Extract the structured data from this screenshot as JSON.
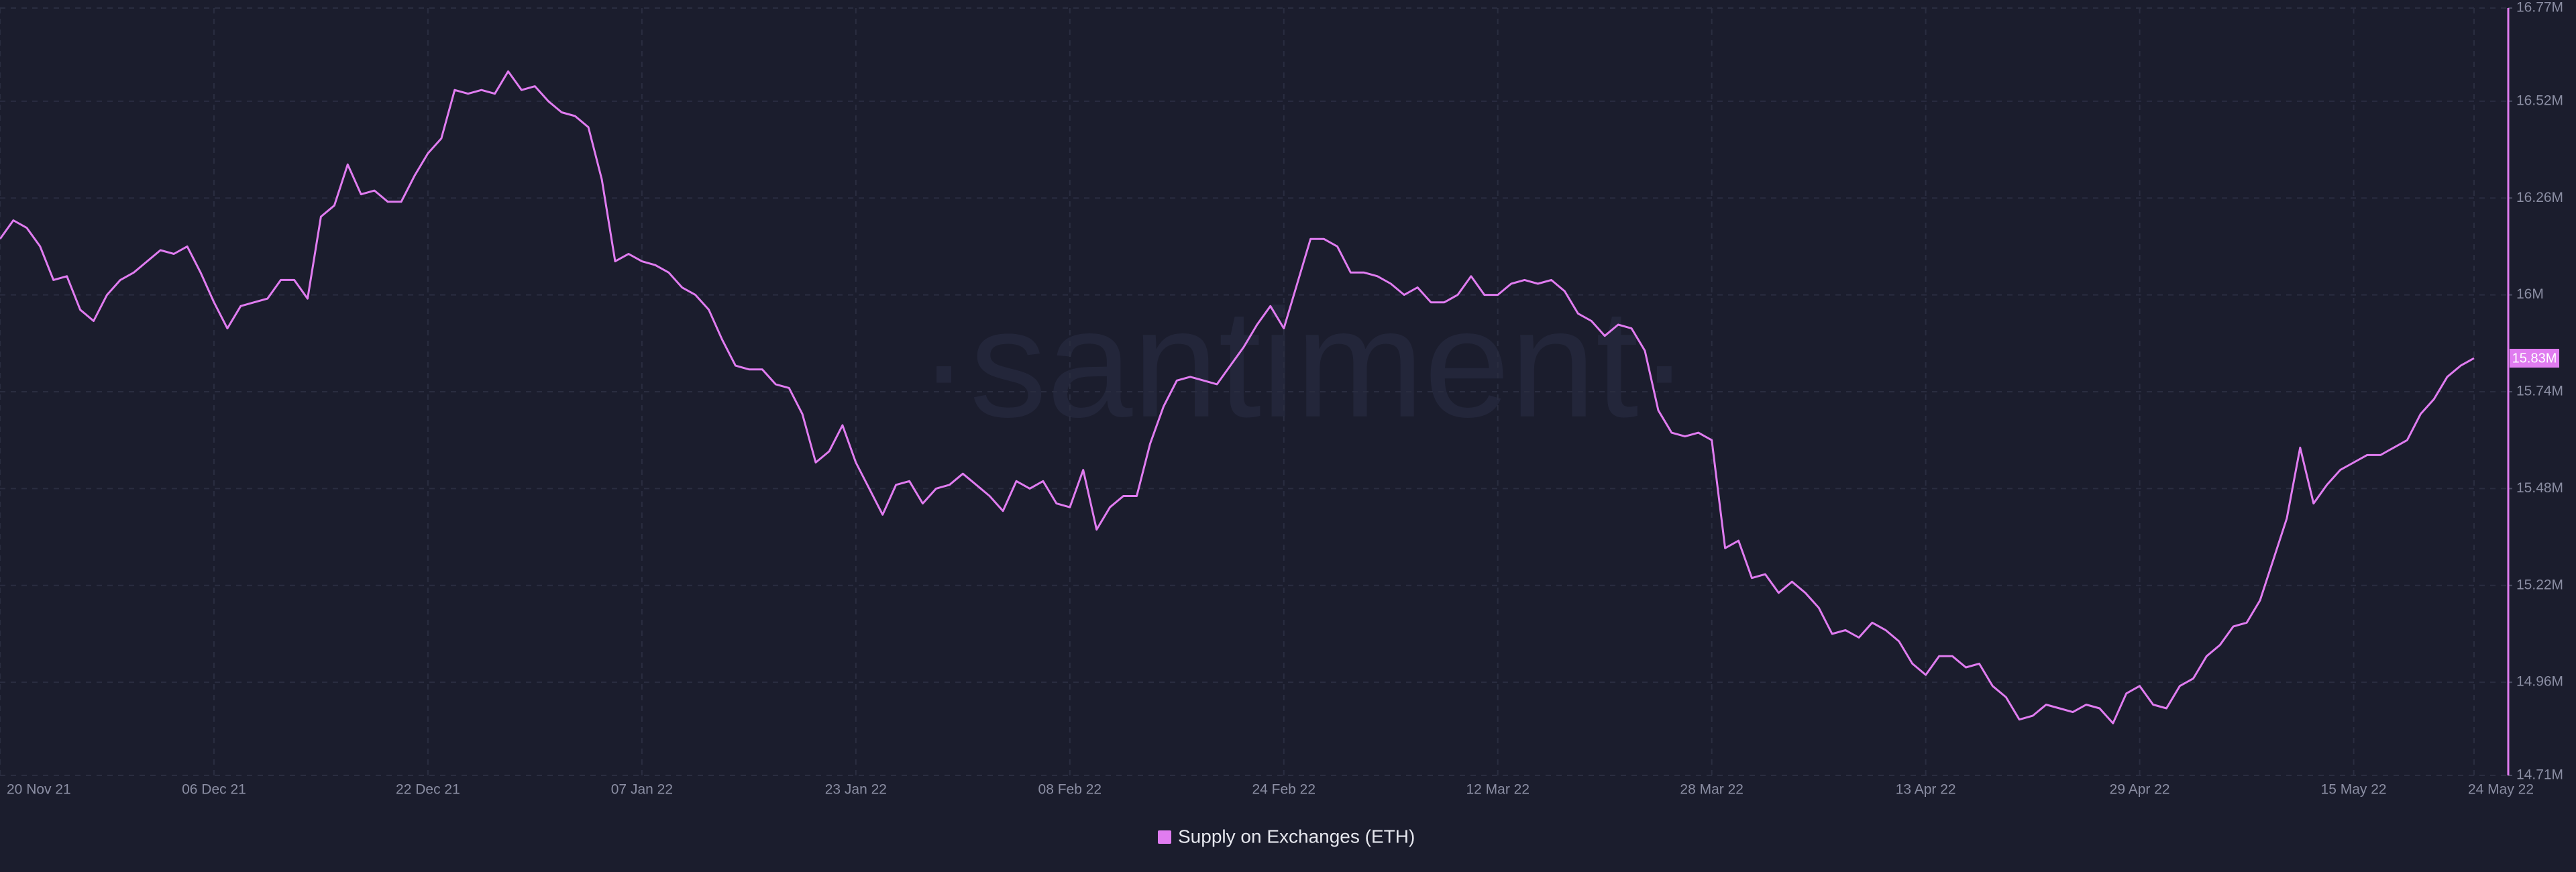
{
  "chart_data": {
    "type": "line",
    "watermark": "·santiment·",
    "categories": [
      "20 Nov 21",
      null,
      null,
      null,
      null,
      null,
      null,
      null,
      null,
      null,
      null,
      null,
      null,
      null,
      null,
      null,
      "06 Dec 21",
      null,
      null,
      null,
      null,
      null,
      null,
      null,
      null,
      null,
      null,
      null,
      null,
      null,
      null,
      null,
      "22 Dec 21",
      null,
      null,
      null,
      null,
      null,
      null,
      null,
      null,
      null,
      null,
      null,
      null,
      null,
      null,
      null,
      "07 Jan 22",
      null,
      null,
      null,
      null,
      null,
      null,
      null,
      null,
      null,
      null,
      null,
      null,
      null,
      null,
      null,
      "23 Jan 22",
      null,
      null,
      null,
      null,
      null,
      null,
      null,
      null,
      null,
      null,
      null,
      null,
      null,
      null,
      null,
      "08 Feb 22",
      null,
      null,
      null,
      null,
      null,
      null,
      null,
      null,
      null,
      null,
      null,
      null,
      null,
      null,
      null,
      "24 Feb 22",
      null,
      null,
      null,
      null,
      null,
      null,
      null,
      null,
      null,
      null,
      null,
      null,
      null,
      null,
      null,
      "12 Mar 22",
      null,
      null,
      null,
      null,
      null,
      null,
      null,
      null,
      null,
      null,
      null,
      null,
      null,
      null,
      null,
      "28 Mar 22",
      null,
      null,
      null,
      null,
      null,
      null,
      null,
      null,
      null,
      null,
      null,
      null,
      null,
      null,
      null,
      "13 Apr 22",
      null,
      null,
      null,
      null,
      null,
      null,
      null,
      null,
      null,
      null,
      null,
      null,
      null,
      null,
      null,
      "29 Apr 22",
      null,
      null,
      null,
      null,
      null,
      null,
      null,
      null,
      null,
      null,
      null,
      null,
      null,
      null,
      null,
      "15 May 22",
      null,
      null,
      null,
      null,
      null,
      null,
      null,
      null,
      "24 May 22"
    ],
    "series": [
      {
        "name": "Supply on Exchanges (ETH)",
        "color": "#e07cf0",
        "values": [
          16.15,
          16.2,
          16.18,
          16.13,
          16.04,
          16.05,
          15.96,
          15.93,
          16.0,
          16.04,
          16.06,
          16.09,
          16.12,
          16.11,
          16.13,
          16.06,
          15.98,
          15.91,
          15.97,
          15.98,
          15.99,
          16.04,
          16.04,
          15.99,
          16.21,
          16.24,
          16.35,
          16.27,
          16.28,
          16.25,
          16.25,
          16.32,
          16.38,
          16.42,
          16.55,
          16.54,
          16.55,
          16.54,
          16.6,
          16.55,
          16.56,
          16.52,
          16.49,
          16.48,
          16.45,
          16.31,
          16.09,
          16.11,
          16.09,
          16.08,
          16.06,
          16.02,
          16.0,
          15.96,
          15.88,
          15.81,
          15.8,
          15.8,
          15.76,
          15.75,
          15.68,
          15.55,
          15.58,
          15.65,
          15.55,
          15.48,
          15.41,
          15.49,
          15.5,
          15.44,
          15.48,
          15.49,
          15.52,
          15.49,
          15.46,
          15.42,
          15.5,
          15.48,
          15.5,
          15.44,
          15.43,
          15.53,
          15.37,
          15.43,
          15.46,
          15.46,
          15.6,
          15.7,
          15.77,
          15.78,
          15.77,
          15.76,
          15.81,
          15.86,
          15.92,
          15.97,
          15.91,
          16.03,
          16.15,
          16.15,
          16.13,
          16.06,
          16.06,
          16.05,
          16.03,
          16.0,
          16.02,
          15.98,
          15.98,
          16.0,
          16.05,
          16.0,
          16.0,
          16.03,
          16.04,
          16.03,
          16.04,
          16.01,
          15.95,
          15.93,
          15.89,
          15.92,
          15.91,
          15.85,
          15.69,
          15.63,
          15.62,
          15.63,
          15.61,
          15.32,
          15.34,
          15.24,
          15.25,
          15.2,
          15.23,
          15.2,
          15.16,
          15.09,
          15.1,
          15.08,
          15.12,
          15.1,
          15.07,
          15.01,
          14.98,
          15.03,
          15.03,
          15.0,
          15.01,
          14.95,
          14.92,
          14.86,
          14.87,
          14.9,
          14.89,
          14.88,
          14.9,
          14.89,
          14.85,
          14.93,
          14.95,
          14.9,
          14.89,
          14.95,
          14.97,
          15.03,
          15.06,
          15.11,
          15.12,
          15.18,
          15.29,
          15.4,
          15.59,
          15.44,
          15.49,
          15.53,
          15.55,
          15.57,
          15.57,
          15.59,
          15.61,
          15.68,
          15.72,
          15.78,
          15.81,
          15.83
        ],
        "value_labels": [
          null,
          null,
          null,
          null,
          null,
          null,
          null,
          null,
          null,
          null,
          null,
          null,
          null,
          null,
          null,
          null,
          null,
          null,
          null,
          null,
          null,
          null,
          null,
          null,
          null,
          null,
          null,
          null,
          null,
          null,
          null,
          null,
          null,
          null,
          null,
          null,
          null,
          null,
          null,
          null,
          null,
          null,
          null,
          null,
          null,
          null,
          null,
          null,
          null,
          null,
          null,
          null,
          null,
          null,
          null,
          null,
          null,
          null,
          null,
          null,
          null,
          null,
          null,
          null,
          null,
          null,
          null,
          null,
          null,
          null,
          null,
          null,
          null,
          null,
          null,
          null,
          null,
          null,
          null,
          null,
          null,
          null,
          null,
          null,
          null,
          null,
          null,
          null,
          null,
          null,
          null,
          null,
          null,
          null,
          null,
          null,
          null,
          null,
          null,
          null,
          null,
          null,
          null,
          null,
          null,
          null,
          null,
          null,
          null,
          null,
          null,
          null,
          null,
          null,
          null,
          null,
          null,
          null,
          null,
          null,
          null,
          null,
          null,
          null,
          null,
          null,
          null,
          null,
          null,
          null,
          null,
          null,
          null,
          null,
          null,
          null,
          null,
          null,
          null,
          null,
          null,
          null,
          null,
          null,
          null,
          null,
          null,
          null,
          null,
          null,
          null,
          null,
          null,
          null,
          null,
          null,
          null,
          null,
          null,
          null,
          null,
          null,
          null,
          null,
          null,
          null,
          null,
          null,
          null,
          null,
          null,
          null,
          null,
          null,
          null,
          null,
          null,
          null,
          null,
          null,
          null,
          null,
          null,
          null,
          null,
          "15.83M"
        ]
      }
    ],
    "ylim": [
      14.71,
      16.77
    ],
    "yticks": [
      {
        "value": 14.71,
        "label": "14.71M"
      },
      {
        "value": 14.96,
        "label": "14.96M"
      },
      {
        "value": 15.22,
        "label": "15.22M"
      },
      {
        "value": 15.48,
        "label": "15.48M"
      },
      {
        "value": 15.74,
        "label": "15.74M"
      },
      {
        "value": 16,
        "label": "16M"
      },
      {
        "value": 16.26,
        "label": "16.26M"
      },
      {
        "value": 16.52,
        "label": "16.52M"
      },
      {
        "value": 16.77,
        "label": "16.77M"
      }
    ],
    "grid": true
  }
}
